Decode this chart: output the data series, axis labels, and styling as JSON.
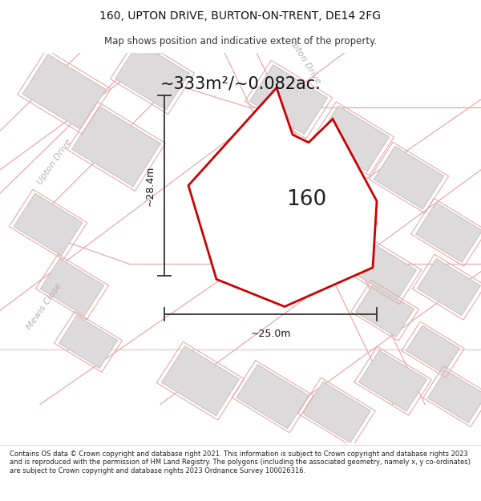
{
  "title_line1": "160, UPTON DRIVE, BURTON-ON-TRENT, DE14 2FG",
  "title_line2": "Map shows position and indicative extent of the property.",
  "area_label": "~333m²/~0.082ac.",
  "number_label": "160",
  "width_label": "~25.0m",
  "height_label": "~28.4m",
  "footer_text": "Contains OS data © Crown copyright and database right 2021. This information is subject to Crown copyright and database rights 2023 and is reproduced with the permission of HM Land Registry. The polygons (including the associated geometry, namely x, y co-ordinates) are subject to Crown copyright and database rights 2023 Ordnance Survey 100026316.",
  "map_bg": "#f7f5f5",
  "plot_outline_color": "#e8aaaa",
  "building_fill": "#dcdada",
  "building_edge": "#c8c0c0",
  "road_line_color": "#c8a8a8",
  "street_label_color": "#b8b0b0",
  "plot_fill": "#ffffff",
  "plot_edge": "#cc0000",
  "dim_color": "#333333",
  "title_fontsize": 10,
  "subtitle_fontsize": 8.5,
  "area_fontsize": 15,
  "number_fontsize": 19,
  "dim_fontsize": 9,
  "street_fontsize": 8
}
